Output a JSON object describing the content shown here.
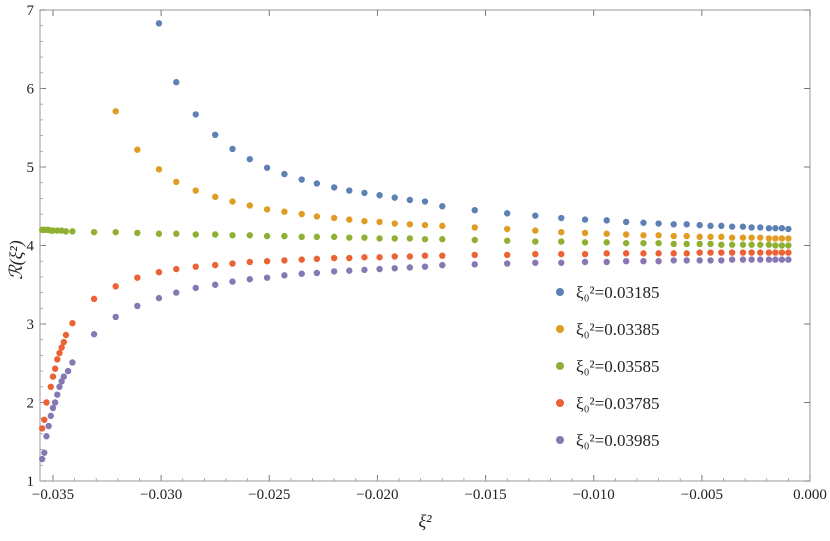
{
  "chart_data": {
    "type": "scatter",
    "title": "",
    "xlabel": "ξ²",
    "ylabel": "ℛ(ξ²)",
    "xlim": [
      -0.0356,
      0.0
    ],
    "ylim": [
      1,
      7
    ],
    "xticks": [
      -0.035,
      -0.03,
      -0.025,
      -0.02,
      -0.015,
      -0.01,
      -0.005,
      0.0
    ],
    "xtick_labels": [
      "−0.035",
      "−0.030",
      "−0.025",
      "−0.020",
      "−0.015",
      "−0.010",
      "−0.005",
      "0.000"
    ],
    "yticks": [
      1,
      2,
      3,
      4,
      5,
      6,
      7
    ],
    "ytick_labels": [
      "1",
      "2",
      "3",
      "4",
      "5",
      "6",
      "7"
    ],
    "grid": false,
    "legend_position": "center-right",
    "series": [
      {
        "name": "ξ₀²=0.03185",
        "legend_label": "ξ₀²=0.03185",
        "color": "#5e81b5",
        "points": [
          [
            -0.0301,
            6.83
          ],
          [
            -0.0293,
            6.08
          ],
          [
            -0.0284,
            5.67
          ],
          [
            -0.0275,
            5.41
          ],
          [
            -0.0267,
            5.23
          ],
          [
            -0.0259,
            5.1
          ],
          [
            -0.0251,
            4.99
          ],
          [
            -0.0243,
            4.91
          ],
          [
            -0.0235,
            4.84
          ],
          [
            -0.0228,
            4.79
          ],
          [
            -0.022,
            4.74
          ],
          [
            -0.0213,
            4.7
          ],
          [
            -0.0206,
            4.67
          ],
          [
            -0.0199,
            4.64
          ],
          [
            -0.0192,
            4.61
          ],
          [
            -0.0185,
            4.58
          ],
          [
            -0.0178,
            4.56
          ],
          [
            -0.017,
            4.5
          ],
          [
            -0.0155,
            4.45
          ],
          [
            -0.014,
            4.41
          ],
          [
            -0.0127,
            4.38
          ],
          [
            -0.0115,
            4.35
          ],
          [
            -0.0104,
            4.33
          ],
          [
            -0.0094,
            4.32
          ],
          [
            -0.0085,
            4.3
          ],
          [
            -0.0077,
            4.29
          ],
          [
            -0.007,
            4.28
          ],
          [
            -0.0063,
            4.27
          ],
          [
            -0.0057,
            4.27
          ],
          [
            -0.0051,
            4.26
          ],
          [
            -0.0046,
            4.25
          ],
          [
            -0.0041,
            4.25
          ],
          [
            -0.0036,
            4.24
          ],
          [
            -0.0031,
            4.24
          ],
          [
            -0.0027,
            4.23
          ],
          [
            -0.0023,
            4.23
          ],
          [
            -0.0019,
            4.22
          ],
          [
            -0.0016,
            4.22
          ],
          [
            -0.0013,
            4.22
          ],
          [
            -0.001,
            4.21
          ]
        ]
      },
      {
        "name": "ξ₀²=0.03385",
        "legend_label": "ξ₀²=0.03385",
        "color": "#e19c24",
        "points": [
          [
            -0.0321,
            5.71
          ],
          [
            -0.0311,
            5.22
          ],
          [
            -0.0301,
            4.97
          ],
          [
            -0.0293,
            4.81
          ],
          [
            -0.0284,
            4.7
          ],
          [
            -0.0275,
            4.62
          ],
          [
            -0.0267,
            4.56
          ],
          [
            -0.0259,
            4.51
          ],
          [
            -0.0251,
            4.46
          ],
          [
            -0.0243,
            4.43
          ],
          [
            -0.0235,
            4.4
          ],
          [
            -0.0228,
            4.37
          ],
          [
            -0.022,
            4.35
          ],
          [
            -0.0213,
            4.33
          ],
          [
            -0.0206,
            4.31
          ],
          [
            -0.0199,
            4.3
          ],
          [
            -0.0192,
            4.28
          ],
          [
            -0.0185,
            4.27
          ],
          [
            -0.0178,
            4.26
          ],
          [
            -0.017,
            4.25
          ],
          [
            -0.0155,
            4.23
          ],
          [
            -0.014,
            4.21
          ],
          [
            -0.0127,
            4.19
          ],
          [
            -0.0115,
            4.17
          ],
          [
            -0.0104,
            4.16
          ],
          [
            -0.0094,
            4.15
          ],
          [
            -0.0085,
            4.14
          ],
          [
            -0.0077,
            4.13
          ],
          [
            -0.007,
            4.13
          ],
          [
            -0.0063,
            4.12
          ],
          [
            -0.0057,
            4.12
          ],
          [
            -0.0051,
            4.11
          ],
          [
            -0.0046,
            4.11
          ],
          [
            -0.0041,
            4.11
          ],
          [
            -0.0036,
            4.1
          ],
          [
            -0.0031,
            4.1
          ],
          [
            -0.0027,
            4.1
          ],
          [
            -0.0023,
            4.1
          ],
          [
            -0.0019,
            4.09
          ],
          [
            -0.0016,
            4.09
          ],
          [
            -0.0013,
            4.09
          ],
          [
            -0.001,
            4.09
          ]
        ]
      },
      {
        "name": "ξ₀²=0.03585",
        "legend_label": "ξ₀²=0.03585",
        "color": "#8fb032",
        "points": [
          [
            -0.0355,
            4.2
          ],
          [
            -0.0354,
            4.2
          ],
          [
            -0.0353,
            4.2
          ],
          [
            -0.0352,
            4.2
          ],
          [
            -0.0351,
            4.19
          ],
          [
            -0.035,
            4.19
          ],
          [
            -0.0348,
            4.19
          ],
          [
            -0.0346,
            4.19
          ],
          [
            -0.0344,
            4.18
          ],
          [
            -0.0341,
            4.18
          ],
          [
            -0.0331,
            4.17
          ],
          [
            -0.0321,
            4.17
          ],
          [
            -0.0311,
            4.16
          ],
          [
            -0.0301,
            4.15
          ],
          [
            -0.0293,
            4.15
          ],
          [
            -0.0284,
            4.14
          ],
          [
            -0.0275,
            4.14
          ],
          [
            -0.0267,
            4.13
          ],
          [
            -0.0259,
            4.13
          ],
          [
            -0.0251,
            4.12
          ],
          [
            -0.0243,
            4.12
          ],
          [
            -0.0235,
            4.11
          ],
          [
            -0.0228,
            4.11
          ],
          [
            -0.022,
            4.11
          ],
          [
            -0.0213,
            4.1
          ],
          [
            -0.0206,
            4.1
          ],
          [
            -0.0199,
            4.09
          ],
          [
            -0.0192,
            4.09
          ],
          [
            -0.0185,
            4.09
          ],
          [
            -0.0178,
            4.08
          ],
          [
            -0.017,
            4.08
          ],
          [
            -0.0155,
            4.07
          ],
          [
            -0.014,
            4.06
          ],
          [
            -0.0127,
            4.05
          ],
          [
            -0.0115,
            4.05
          ],
          [
            -0.0104,
            4.04
          ],
          [
            -0.0094,
            4.04
          ],
          [
            -0.0085,
            4.03
          ],
          [
            -0.0077,
            4.03
          ],
          [
            -0.007,
            4.03
          ],
          [
            -0.0063,
            4.02
          ],
          [
            -0.0057,
            4.02
          ],
          [
            -0.0051,
            4.02
          ],
          [
            -0.0046,
            4.02
          ],
          [
            -0.0041,
            4.01
          ],
          [
            -0.0036,
            4.01
          ],
          [
            -0.0031,
            4.01
          ],
          [
            -0.0027,
            4.01
          ],
          [
            -0.0023,
            4.01
          ],
          [
            -0.0019,
            4.01
          ],
          [
            -0.0016,
            4.0
          ],
          [
            -0.0013,
            4.0
          ],
          [
            -0.001,
            4.0
          ]
        ]
      },
      {
        "name": "ξ₀²=0.03785",
        "legend_label": "ξ₀²=0.03785",
        "color": "#eb6235",
        "points": [
          [
            -0.0355,
            1.67
          ],
          [
            -0.0354,
            1.78
          ],
          [
            -0.0353,
            2.0
          ],
          [
            -0.0351,
            2.2
          ],
          [
            -0.035,
            2.33
          ],
          [
            -0.0349,
            2.43
          ],
          [
            -0.0348,
            2.55
          ],
          [
            -0.0347,
            2.63
          ],
          [
            -0.0346,
            2.7
          ],
          [
            -0.0345,
            2.77
          ],
          [
            -0.0344,
            2.86
          ],
          [
            -0.0341,
            3.01
          ],
          [
            -0.0331,
            3.32
          ],
          [
            -0.0321,
            3.48
          ],
          [
            -0.0311,
            3.59
          ],
          [
            -0.0301,
            3.66
          ],
          [
            -0.0293,
            3.7
          ],
          [
            -0.0284,
            3.73
          ],
          [
            -0.0275,
            3.75
          ],
          [
            -0.0267,
            3.77
          ],
          [
            -0.0259,
            3.79
          ],
          [
            -0.0251,
            3.8
          ],
          [
            -0.0243,
            3.81
          ],
          [
            -0.0235,
            3.82
          ],
          [
            -0.0228,
            3.83
          ],
          [
            -0.022,
            3.84
          ],
          [
            -0.0213,
            3.84
          ],
          [
            -0.0206,
            3.85
          ],
          [
            -0.0199,
            3.85
          ],
          [
            -0.0192,
            3.86
          ],
          [
            -0.0185,
            3.86
          ],
          [
            -0.0178,
            3.87
          ],
          [
            -0.017,
            3.87
          ],
          [
            -0.0155,
            3.88
          ],
          [
            -0.014,
            3.88
          ],
          [
            -0.0127,
            3.89
          ],
          [
            -0.0115,
            3.89
          ],
          [
            -0.0104,
            3.89
          ],
          [
            -0.0094,
            3.9
          ],
          [
            -0.0085,
            3.9
          ],
          [
            -0.0077,
            3.9
          ],
          [
            -0.007,
            3.9
          ],
          [
            -0.0063,
            3.9
          ],
          [
            -0.0057,
            3.9
          ],
          [
            -0.0051,
            3.91
          ],
          [
            -0.0046,
            3.91
          ],
          [
            -0.0041,
            3.91
          ],
          [
            -0.0036,
            3.91
          ],
          [
            -0.0031,
            3.91
          ],
          [
            -0.0027,
            3.91
          ],
          [
            -0.0023,
            3.91
          ],
          [
            -0.0019,
            3.91
          ],
          [
            -0.0016,
            3.91
          ],
          [
            -0.0013,
            3.91
          ],
          [
            -0.001,
            3.91
          ]
        ]
      },
      {
        "name": "ξ₀²=0.03985",
        "legend_label": "ξ₀²=0.03985",
        "color": "#8778b3",
        "points": [
          [
            -0.0355,
            1.28
          ],
          [
            -0.0354,
            1.36
          ],
          [
            -0.0353,
            1.57
          ],
          [
            -0.0352,
            1.7
          ],
          [
            -0.0351,
            1.83
          ],
          [
            -0.035,
            1.93
          ],
          [
            -0.0349,
            2.0
          ],
          [
            -0.0348,
            2.1
          ],
          [
            -0.0347,
            2.2
          ],
          [
            -0.0346,
            2.27
          ],
          [
            -0.0345,
            2.33
          ],
          [
            -0.0343,
            2.4
          ],
          [
            -0.0341,
            2.51
          ],
          [
            -0.0331,
            2.87
          ],
          [
            -0.0321,
            3.09
          ],
          [
            -0.0311,
            3.23
          ],
          [
            -0.0301,
            3.33
          ],
          [
            -0.0293,
            3.4
          ],
          [
            -0.0284,
            3.46
          ],
          [
            -0.0275,
            3.5
          ],
          [
            -0.0267,
            3.54
          ],
          [
            -0.0259,
            3.57
          ],
          [
            -0.0251,
            3.59
          ],
          [
            -0.0243,
            3.62
          ],
          [
            -0.0235,
            3.64
          ],
          [
            -0.0228,
            3.65
          ],
          [
            -0.022,
            3.67
          ],
          [
            -0.0213,
            3.68
          ],
          [
            -0.0206,
            3.69
          ],
          [
            -0.0199,
            3.7
          ],
          [
            -0.0192,
            3.71
          ],
          [
            -0.0185,
            3.72
          ],
          [
            -0.0178,
            3.73
          ],
          [
            -0.017,
            3.75
          ],
          [
            -0.0155,
            3.76
          ],
          [
            -0.014,
            3.77
          ],
          [
            -0.0127,
            3.78
          ],
          [
            -0.0115,
            3.78
          ],
          [
            -0.0104,
            3.79
          ],
          [
            -0.0094,
            3.79
          ],
          [
            -0.0085,
            3.8
          ],
          [
            -0.0077,
            3.8
          ],
          [
            -0.007,
            3.8
          ],
          [
            -0.0063,
            3.81
          ],
          [
            -0.0057,
            3.81
          ],
          [
            -0.0051,
            3.81
          ],
          [
            -0.0046,
            3.81
          ],
          [
            -0.0041,
            3.81
          ],
          [
            -0.0036,
            3.82
          ],
          [
            -0.0031,
            3.82
          ],
          [
            -0.0027,
            3.82
          ],
          [
            -0.0023,
            3.82
          ],
          [
            -0.0019,
            3.82
          ],
          [
            -0.0016,
            3.82
          ],
          [
            -0.0013,
            3.82
          ],
          [
            -0.001,
            3.82
          ]
        ]
      }
    ]
  }
}
